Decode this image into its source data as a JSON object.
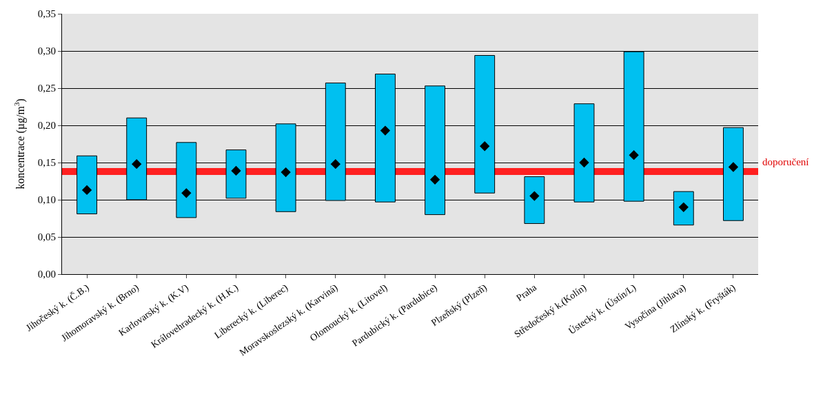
{
  "chart_data": {
    "type": "bar",
    "ylabel": "koncentrace (µg/m$^{3}$)",
    "categories": [
      "Jihočeský k. (Č.B.)",
      "Jihomoravský k. (Brno)",
      "Karlovarský k. (K.V)",
      "Královehradecký k. (H.K.)",
      "Liberecký k. (Liberec)",
      "Moravskoslezský k. (Karviná)",
      "Olomoucký k. (Litovel)",
      "Pardubický k. (Pardubice)",
      "Plzeňský (Plzeň)",
      "Praha",
      "Středočeský k.(Kolín)",
      "Ústecký k. (Ústín/L)",
      "Vysočina (Jihlava)",
      "Zlínský k. (Fryšták)"
    ],
    "series": [
      {
        "color": "#00c0f0",
        "base": [
          0.081,
          0.1,
          0.076,
          0.102,
          0.084,
          0.099,
          0.097,
          0.08,
          0.109,
          0.068,
          0.097,
          0.098,
          0.066,
          0.072
        ],
        "values": [
          0.078,
          0.11,
          0.101,
          0.065,
          0.118,
          0.158,
          0.172,
          0.173,
          0.185,
          0.063,
          0.132,
          0.201,
          0.045,
          0.125
        ]
      },
      {
        "type": "scatter",
        "color": "#000000",
        "marker": "diamond",
        "x": [
          "Jihočeský k. (Č.B.)",
          "Jihomoravský k. (Brno)",
          "Karlovarský k. (K.V)",
          "Královehradecký k. (H.K.)",
          "Liberecký k. (Liberec)",
          "Moravskoslezský k. (Karviná)",
          "Olomoucký k. (Litovel)",
          "Pardubický k. (Pardubice)",
          "Plzeňský (Plzeň)",
          "Praha",
          "Středočeský k.(Kolín)",
          "Ústecký k. (Ústín/L)",
          "Vysočina (Jihlava)",
          "Zlínský k. (Fryšták)"
        ],
        "values": [
          0.113,
          0.148,
          0.109,
          0.139,
          0.137,
          0.148,
          0.193,
          0.127,
          0.172,
          0.105,
          0.15,
          0.16,
          0.09,
          0.144
        ]
      }
    ],
    "ref_lines": [
      {
        "axis": "y",
        "value": 0.138,
        "label": "doporučení",
        "color": "#ff2020"
      }
    ],
    "ylim": [
      0,
      0.35
    ],
    "yticks": [
      {
        "value": 0,
        "label": "0,00"
      },
      {
        "value": 0.05,
        "label": "0,05"
      },
      {
        "value": 0.1,
        "label": "0,10"
      },
      {
        "value": 0.15,
        "label": "0,15"
      },
      {
        "value": 0.2,
        "label": "0,20"
      },
      {
        "value": 0.25,
        "label": "0,25"
      },
      {
        "value": 0.3,
        "label": "0,30"
      },
      {
        "value": 0.35,
        "label": "0,35"
      }
    ],
    "grid": "y"
  }
}
